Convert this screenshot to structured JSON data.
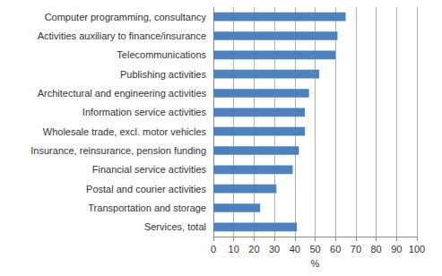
{
  "chart_data": {
    "type": "bar",
    "orientation": "horizontal",
    "categories": [
      "Computer programming, consultancy",
      "Activities auxiliary to finance/insurance",
      "Telecommunications",
      "Publishing activities",
      "Architectural and engineering activities",
      "Information service activities",
      "Wholesale trade, excl. motor vehicles",
      "Insurance, reinsurance, pension funding",
      "Financial service activities",
      "Postal and courier activities",
      "Transportation and storage",
      "Services, total"
    ],
    "values": [
      65,
      61,
      60,
      52,
      47,
      45,
      45,
      42,
      39,
      31,
      23,
      41
    ],
    "color": "#4f81bd",
    "xlabel": "%",
    "xlim": [
      0,
      100
    ],
    "xticks": [
      0,
      10,
      20,
      30,
      40,
      50,
      60,
      70,
      80,
      90,
      100
    ],
    "grid": true
  }
}
